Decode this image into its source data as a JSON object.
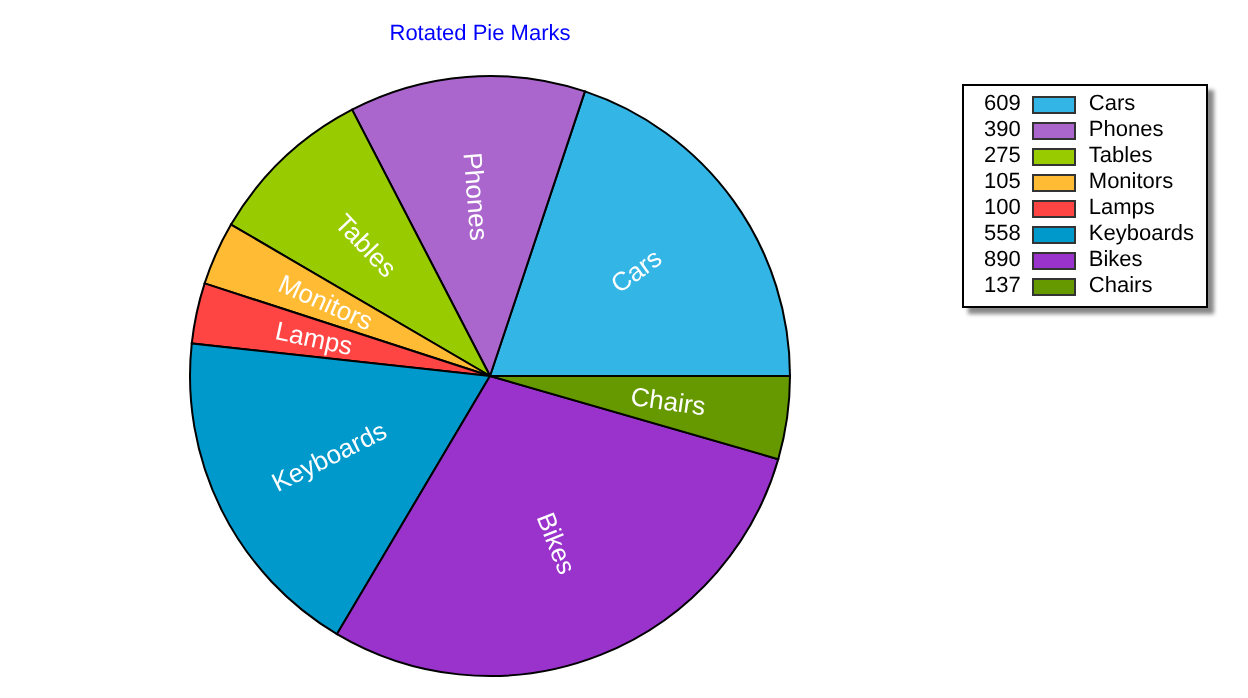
{
  "chart_data": {
    "type": "pie",
    "title": "Rotated Pie Marks",
    "categories": [
      "Cars",
      "Phones",
      "Tables",
      "Monitors",
      "Lamps",
      "Keyboards",
      "Bikes",
      "Chairs"
    ],
    "values": [
      609,
      390,
      275,
      105,
      100,
      558,
      890,
      137
    ],
    "colors": [
      "#33b5e5",
      "#aa66cc",
      "#99cc00",
      "#ffbb33",
      "#ff4444",
      "#0099cc",
      "#9933cc",
      "#669900"
    ],
    "data_labels": true,
    "legend": "top right"
  }
}
